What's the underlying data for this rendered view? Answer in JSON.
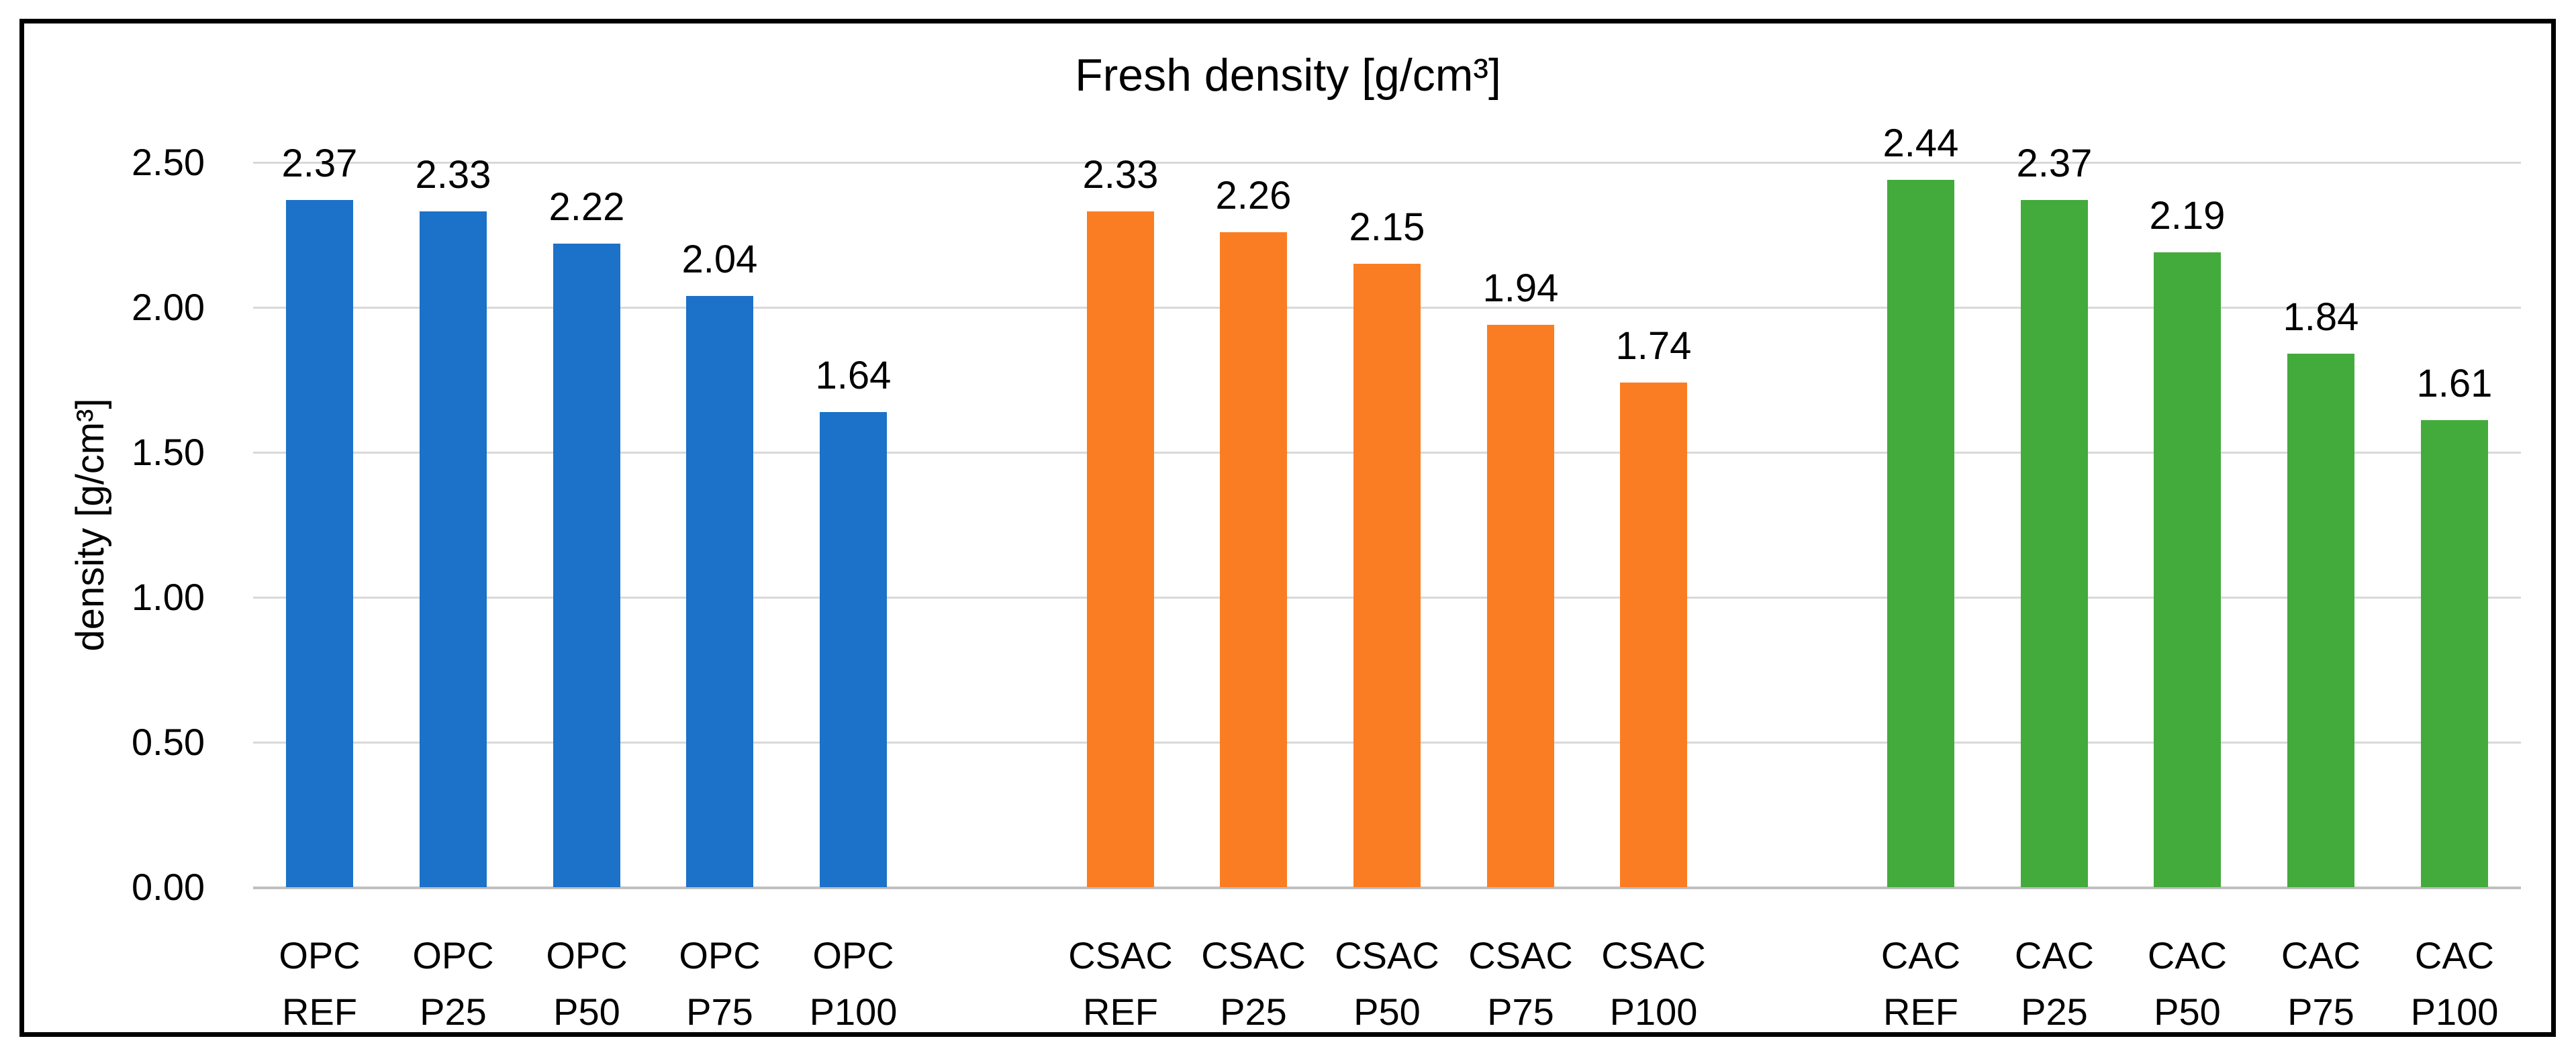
{
  "chart_data": {
    "type": "bar",
    "title": "Fresh density [g/cm³]",
    "ylabel": "density [g/cm³]",
    "ylim": [
      0,
      2.5
    ],
    "ytick_step": 0.5,
    "ytick_labels": [
      "0.00",
      "0.50",
      "1.00",
      "1.50",
      "2.00",
      "2.50"
    ],
    "grid": true,
    "legend": "none",
    "value_label_position": "outside-end",
    "value_label_decimals": 2,
    "groups": [
      {
        "name": "OPC",
        "color": "#1B72C8",
        "categories": [
          [
            "OPC",
            "REF"
          ],
          [
            "OPC",
            "P25"
          ],
          [
            "OPC",
            "P50"
          ],
          [
            "OPC",
            "P75"
          ],
          [
            "OPC",
            "P100"
          ]
        ],
        "values": [
          2.37,
          2.33,
          2.22,
          2.04,
          1.64
        ]
      },
      {
        "name": "CSAC",
        "color": "#FB7D23",
        "categories": [
          [
            "CSAC",
            "REF"
          ],
          [
            "CSAC",
            "P25"
          ],
          [
            "CSAC",
            "P50"
          ],
          [
            "CSAC",
            "P75"
          ],
          [
            "CSAC",
            "P100"
          ]
        ],
        "values": [
          2.33,
          2.26,
          2.15,
          1.94,
          1.74
        ]
      },
      {
        "name": "CAC",
        "color": "#43AB3B",
        "categories": [
          [
            "CAC",
            "REF"
          ],
          [
            "CAC",
            "P25"
          ],
          [
            "CAC",
            "P50"
          ],
          [
            "CAC",
            "P75"
          ],
          [
            "CAC",
            "P100"
          ]
        ],
        "values": [
          2.44,
          2.37,
          2.19,
          1.84,
          1.61
        ]
      }
    ],
    "colors": {
      "grid": "#D9D9D9",
      "baseline": "#BFBFBF",
      "text": "#000000",
      "frame": "#000000",
      "background": "#FFFFFF"
    }
  }
}
